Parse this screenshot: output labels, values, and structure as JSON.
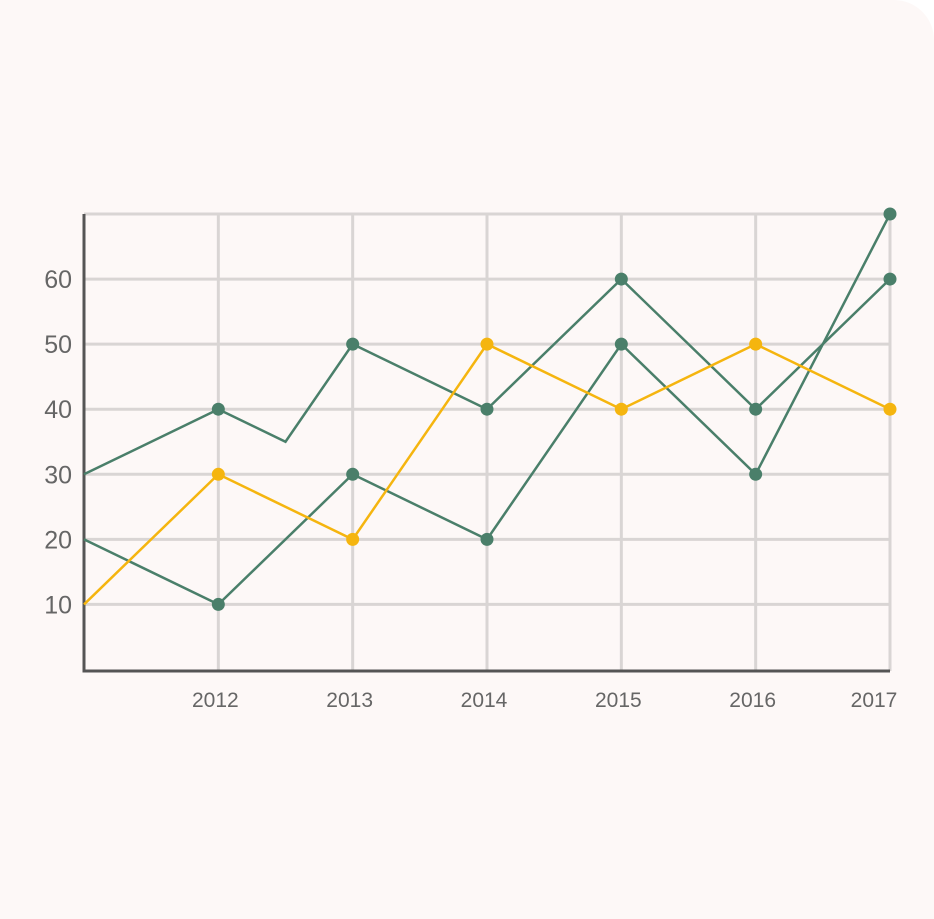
{
  "chart_data": {
    "type": "line",
    "x": [
      2011,
      2012,
      2013,
      2014,
      2015,
      2016,
      2017
    ],
    "x_tick_labels": [
      "2012",
      "2013",
      "2014",
      "2015",
      "2016",
      "2017"
    ],
    "y_tick_labels": [
      "10",
      "20",
      "30",
      "40",
      "50",
      "60"
    ],
    "ylim": [
      0,
      70
    ],
    "grid": true,
    "series": [
      {
        "color": "#4a7f6a",
        "points": [
          [
            2011,
            30
          ],
          [
            2012,
            40
          ],
          [
            2012.5,
            35
          ],
          [
            2013,
            50
          ],
          [
            2014,
            40
          ],
          [
            2015,
            60
          ],
          [
            2016,
            40
          ],
          [
            2017,
            60
          ]
        ],
        "markers": [
          [
            2012,
            40
          ],
          [
            2013,
            50
          ],
          [
            2014,
            40
          ],
          [
            2015,
            60
          ],
          [
            2016,
            40
          ],
          [
            2017,
            60
          ]
        ]
      },
      {
        "color": "#4a7f6a",
        "points": [
          [
            2011,
            20
          ],
          [
            2012,
            10
          ],
          [
            2013,
            30
          ],
          [
            2014,
            20
          ],
          [
            2015,
            50
          ],
          [
            2016,
            30
          ],
          [
            2017,
            70
          ]
        ],
        "markers": [
          [
            2012,
            10
          ],
          [
            2013,
            30
          ],
          [
            2014,
            20
          ],
          [
            2015,
            50
          ],
          [
            2016,
            30
          ],
          [
            2017,
            70
          ]
        ]
      },
      {
        "color": "#f5b50f",
        "points": [
          [
            2011,
            10
          ],
          [
            2012,
            30
          ],
          [
            2013,
            20
          ],
          [
            2014,
            50
          ],
          [
            2015,
            40
          ],
          [
            2016,
            50
          ],
          [
            2017,
            40
          ]
        ],
        "markers": [
          [
            2012,
            30
          ],
          [
            2013,
            20
          ],
          [
            2014,
            50
          ],
          [
            2015,
            40
          ],
          [
            2016,
            50
          ],
          [
            2017,
            40
          ]
        ]
      }
    ]
  }
}
